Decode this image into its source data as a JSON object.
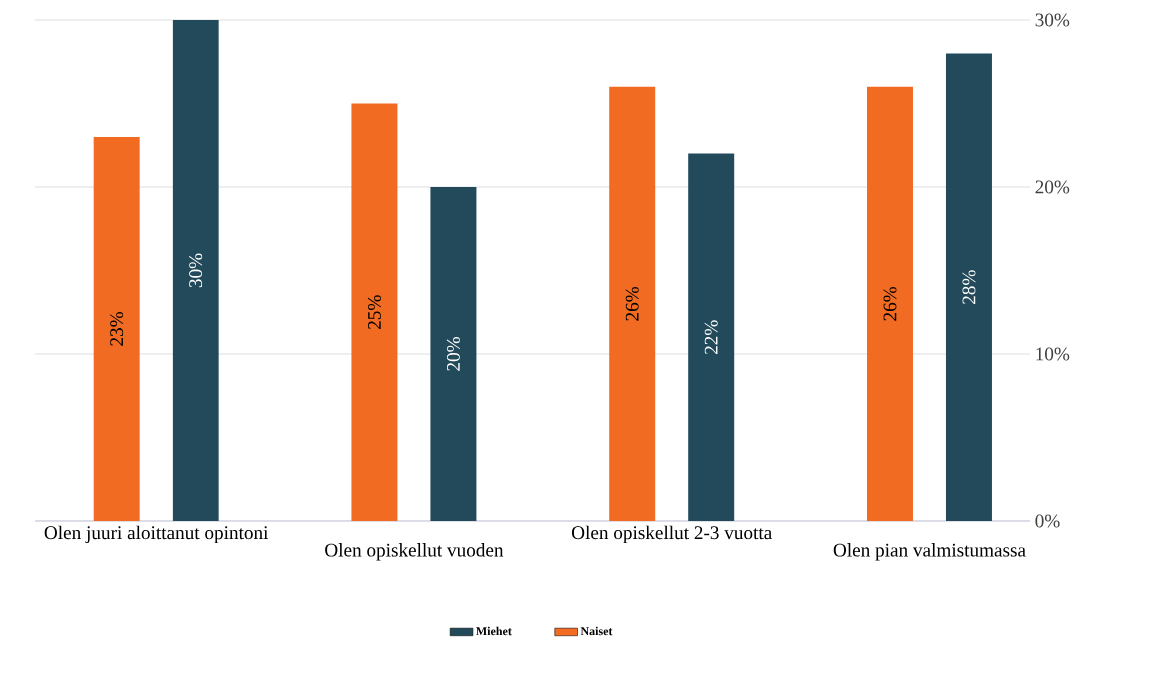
{
  "chart_data": {
    "type": "bar",
    "categories": [
      "Olen juuri aloittanut opintoni",
      "Olen opiskellut vuoden",
      "Olen opiskellut 2-3 vuotta",
      "Olen pian valmistumassa"
    ],
    "series": [
      {
        "name": "Naiset",
        "color": "#f26b22",
        "values": [
          23,
          25,
          26,
          26
        ],
        "value_labels": [
          "23%",
          "25%",
          "26%",
          "26%"
        ]
      },
      {
        "name": "Miehet",
        "color": "#234a5a",
        "values": [
          30,
          20,
          22,
          28
        ],
        "value_labels": [
          "30%",
          "20%",
          "22%",
          "28%"
        ]
      }
    ],
    "ylim": [
      0,
      30
    ],
    "yticks": [
      {
        "value": 0,
        "label": "0%"
      },
      {
        "value": 10,
        "label": "10%"
      },
      {
        "value": 20,
        "label": "20%"
      },
      {
        "value": 30,
        "label": "30%"
      }
    ],
    "grid": "y",
    "legend": "bottom"
  }
}
